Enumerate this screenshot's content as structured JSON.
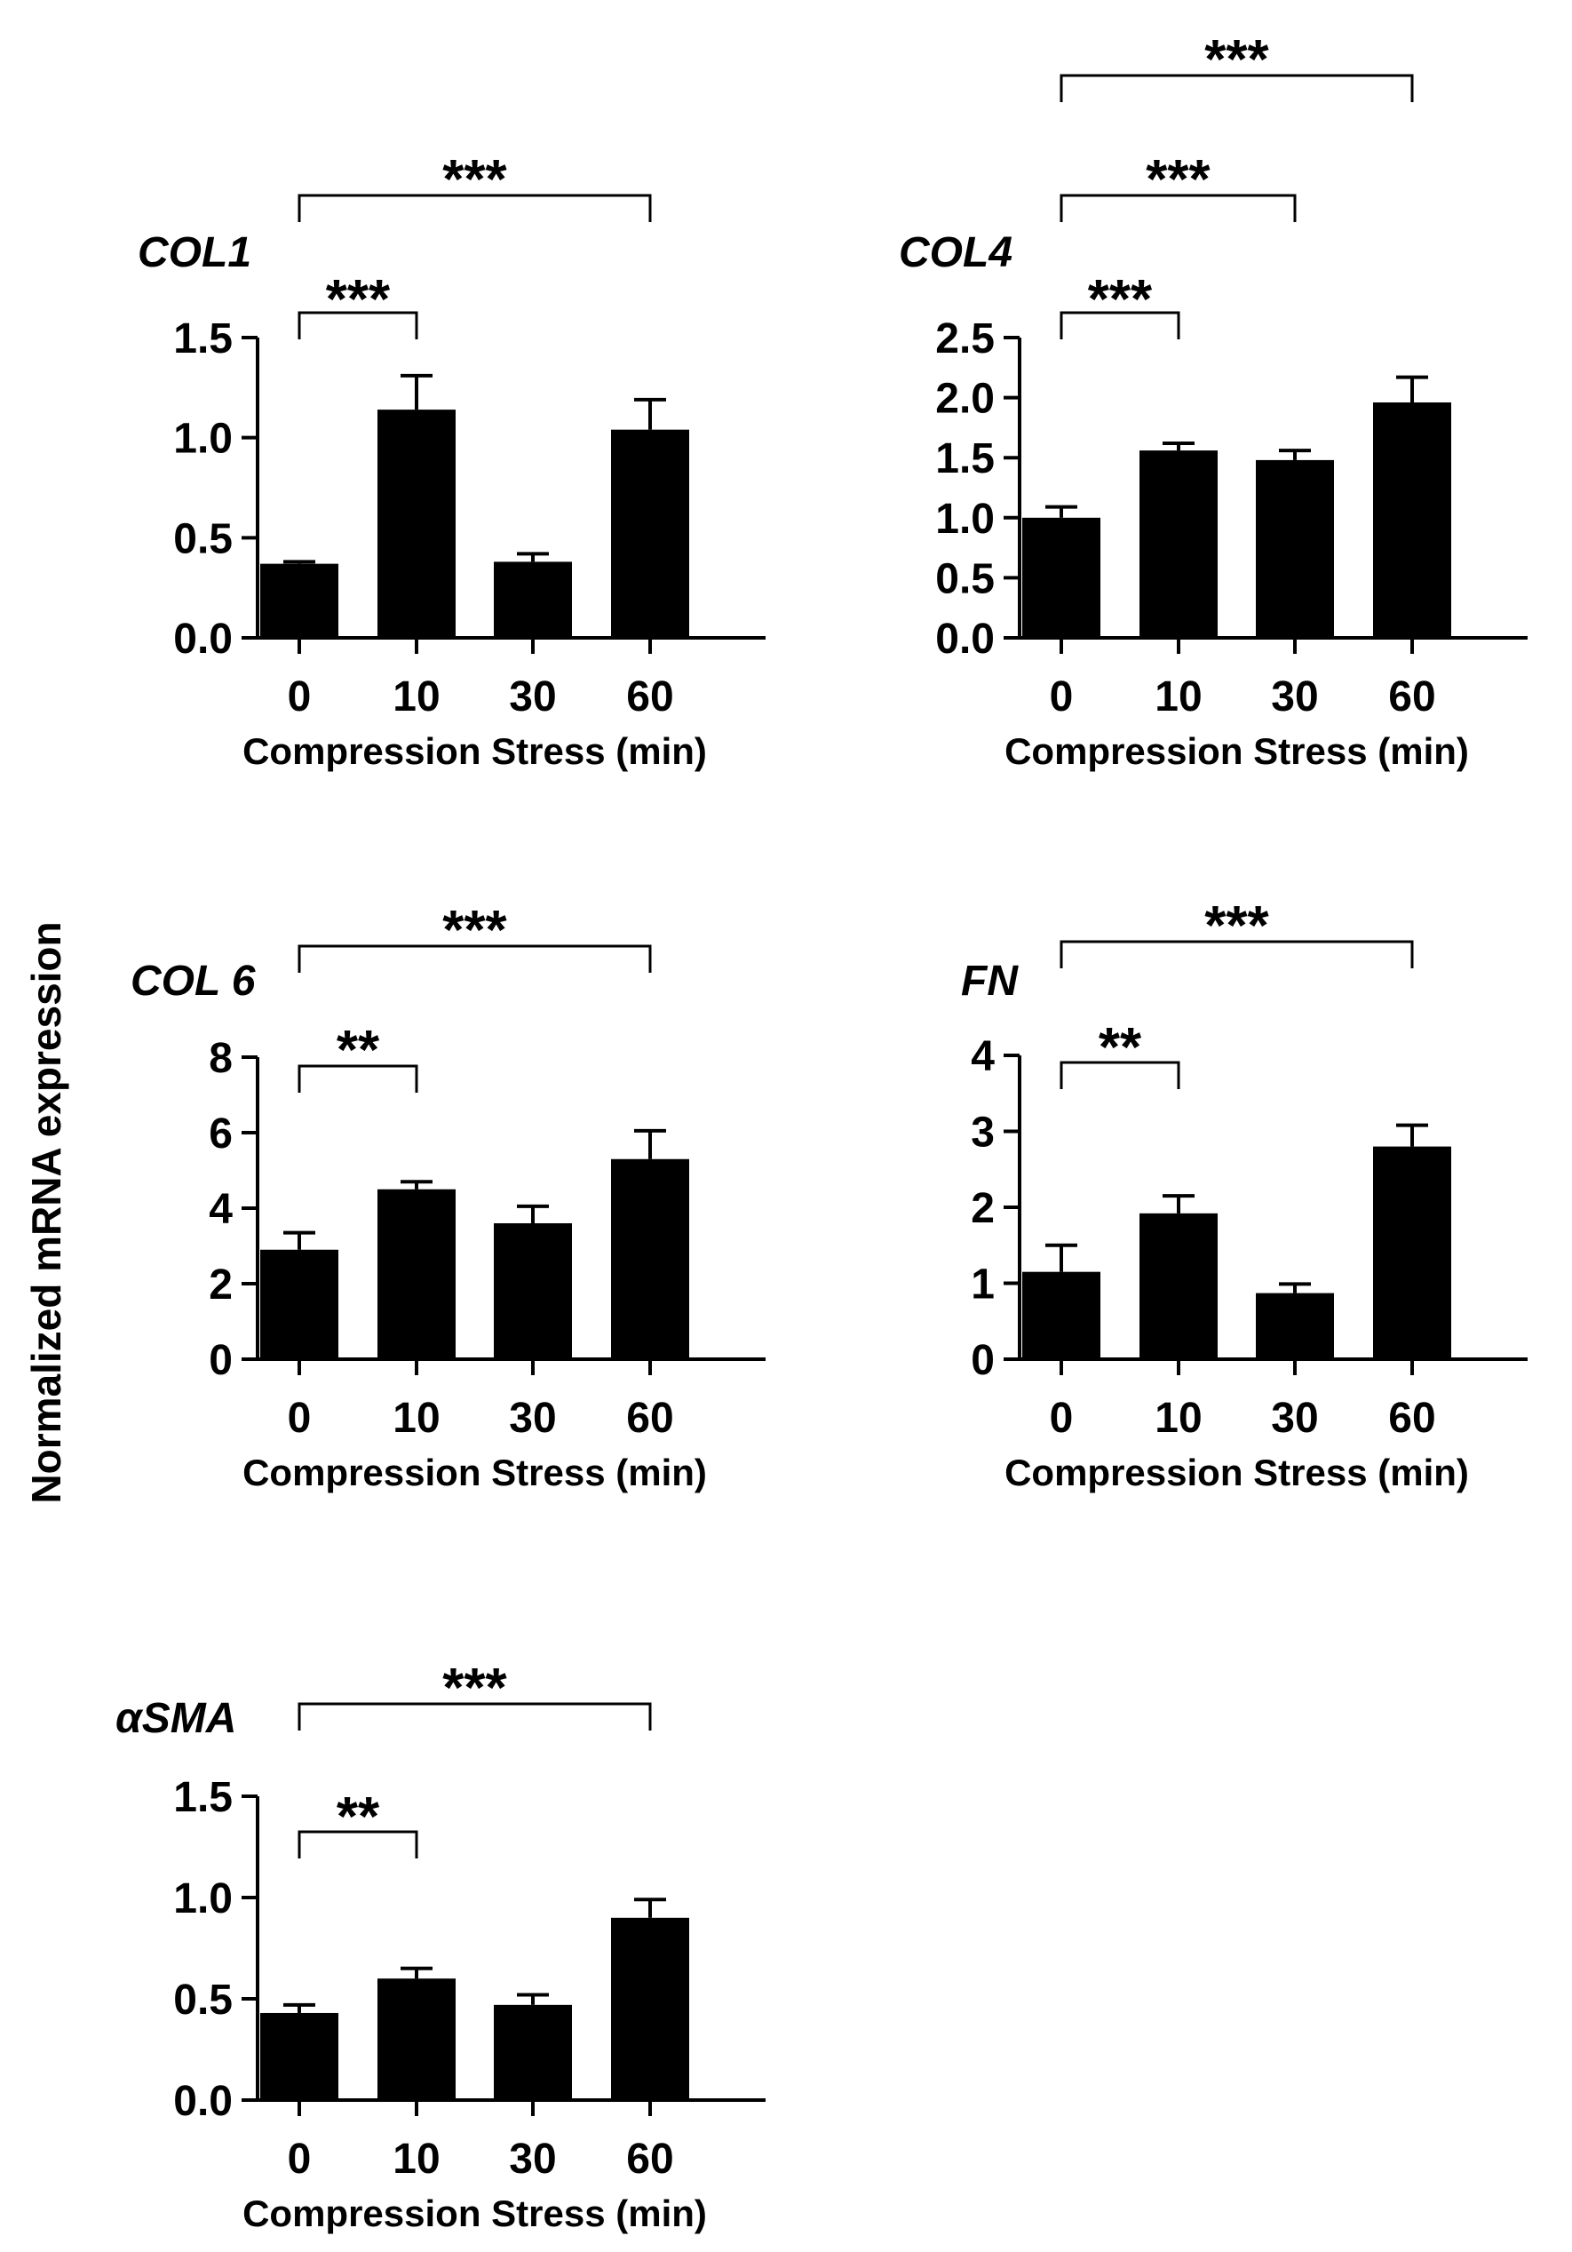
{
  "figure": {
    "ylabel": "Normalized mRNA expression"
  },
  "chart_data": [
    {
      "type": "bar",
      "title": "COL1",
      "categories": [
        "0",
        "10",
        "30",
        "60"
      ],
      "values": [
        0.37,
        1.14,
        0.38,
        1.04
      ],
      "errors": [
        0.01,
        0.17,
        0.04,
        0.15
      ],
      "ylim": [
        0,
        1.5
      ],
      "yticks": [
        "0.0",
        "0.5",
        "1.0",
        "1.5"
      ],
      "xlabel": "Compression Stress (min)",
      "significance": [
        {
          "from": "0",
          "to": "10",
          "label": "***"
        },
        {
          "from": "0",
          "to": "60",
          "label": "***"
        }
      ]
    },
    {
      "type": "bar",
      "title": "COL4",
      "categories": [
        "0",
        "10",
        "30",
        "60"
      ],
      "values": [
        1.0,
        1.56,
        1.48,
        1.96
      ],
      "errors": [
        0.09,
        0.06,
        0.08,
        0.21
      ],
      "ylim": [
        0,
        2.5
      ],
      "yticks": [
        "0.0",
        "0.5",
        "1.0",
        "1.5",
        "2.0",
        "2.5"
      ],
      "xlabel": "Compression Stress (min)",
      "significance": [
        {
          "from": "0",
          "to": "10",
          "label": "***"
        },
        {
          "from": "0",
          "to": "30",
          "label": "***"
        },
        {
          "from": "0",
          "to": "60",
          "label": "***"
        }
      ]
    },
    {
      "type": "bar",
      "title": "COL 6",
      "categories": [
        "0",
        "10",
        "30",
        "60"
      ],
      "values": [
        2.9,
        4.5,
        3.6,
        5.3
      ],
      "errors": [
        0.45,
        0.2,
        0.45,
        0.75
      ],
      "ylim": [
        0,
        8
      ],
      "yticks": [
        "0",
        "2",
        "4",
        "6",
        "8"
      ],
      "xlabel": "Compression Stress (min)",
      "significance": [
        {
          "from": "0",
          "to": "10",
          "label": "**"
        },
        {
          "from": "0",
          "to": "60",
          "label": "***"
        }
      ]
    },
    {
      "type": "bar",
      "title": "FN",
      "categories": [
        "0",
        "10",
        "30",
        "60"
      ],
      "values": [
        1.15,
        1.92,
        0.87,
        2.8
      ],
      "errors": [
        0.35,
        0.23,
        0.12,
        0.28
      ],
      "ylim": [
        0,
        4
      ],
      "yticks": [
        "0",
        "1",
        "2",
        "3",
        "4"
      ],
      "xlabel": "Compression Stress (min)",
      "significance": [
        {
          "from": "0",
          "to": "10",
          "label": "**"
        },
        {
          "from": "0",
          "to": "60",
          "label": "***"
        }
      ]
    },
    {
      "type": "bar",
      "title": "αSMA",
      "categories": [
        "0",
        "10",
        "30",
        "60"
      ],
      "values": [
        0.43,
        0.6,
        0.47,
        0.9
      ],
      "errors": [
        0.04,
        0.05,
        0.05,
        0.09
      ],
      "ylim": [
        0,
        1.5
      ],
      "yticks": [
        "0.0",
        "0.5",
        "1.0",
        "1.5"
      ],
      "xlabel": "Compression Stress (min)",
      "significance": [
        {
          "from": "0",
          "to": "10",
          "label": "**"
        },
        {
          "from": "0",
          "to": "60",
          "label": "***"
        }
      ]
    }
  ],
  "colors": {
    "bar": "#000000",
    "axis": "#000000",
    "background": "#ffffff"
  }
}
